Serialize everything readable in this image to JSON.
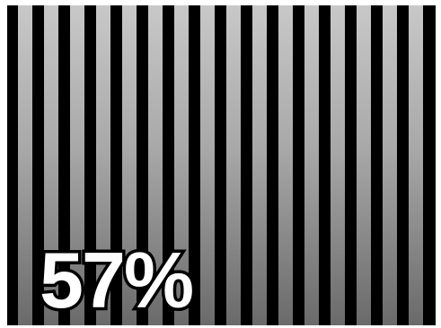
{
  "progress": {
    "percent_label": "57%",
    "value": 57
  },
  "stripes": {
    "count": 16,
    "colors": {
      "background": "#000000",
      "stripe_top": "#c8c8c8",
      "stripe_bottom": "#6a6a6a"
    }
  }
}
